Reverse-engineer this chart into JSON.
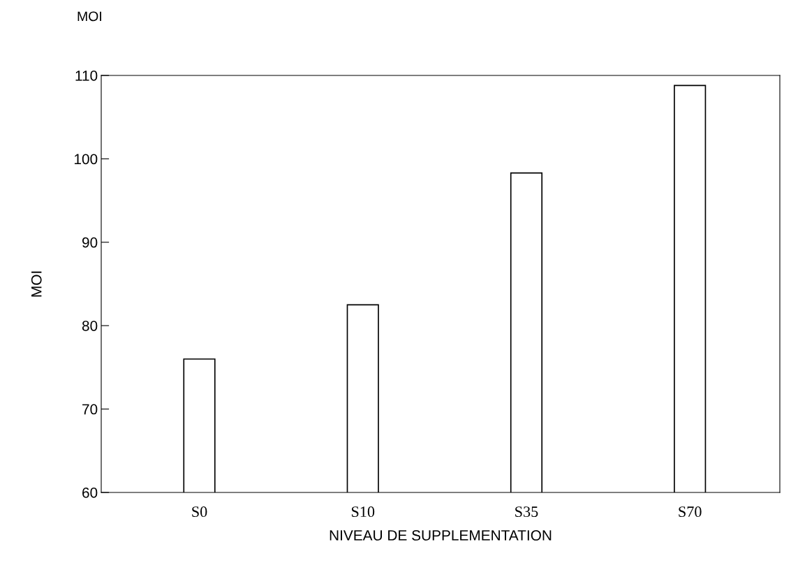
{
  "chart_data": {
    "type": "bar",
    "title": "MOI",
    "xlabel": "NIVEAU DE SUPPLEMENTATION",
    "ylabel": "MOI",
    "categories": [
      "S0",
      "S10",
      "S35",
      "S70"
    ],
    "values": [
      76,
      82.5,
      98.3,
      108.8
    ],
    "color": "#ffffff",
    "ylim": [
      60,
      110
    ],
    "yticks": [
      60,
      70,
      80,
      90,
      100,
      110
    ],
    "grid": false
  }
}
